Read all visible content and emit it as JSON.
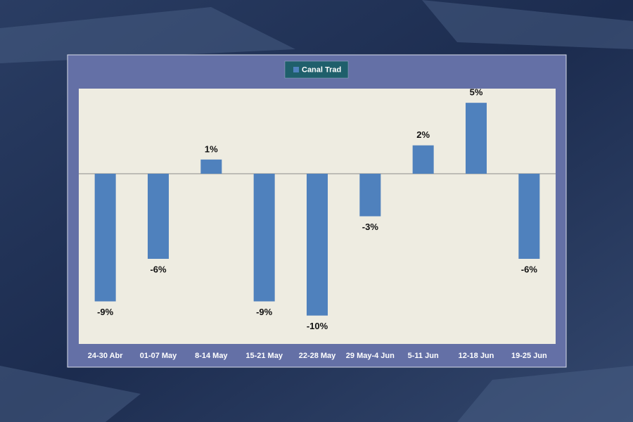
{
  "chart_data": {
    "type": "bar",
    "categories": [
      "24-30 Abr",
      "01-07 May",
      "8-14 May",
      "15-21 May",
      "22-28 May",
      "29 May-4  Jun",
      "5-11 Jun",
      "12-18 Jun",
      "19-25 Jun"
    ],
    "series": [
      {
        "name": "Canal Trad",
        "color": "#4f81bd",
        "values": [
          -9,
          -6,
          1,
          -9,
          -10,
          -3,
          2,
          5,
          -6
        ],
        "value_labels": [
          "-9%",
          "-6%",
          "1%",
          "-9%",
          "-10%",
          "-3%",
          "2%",
          "5%",
          "-6%"
        ]
      }
    ],
    "ylim": [
      -12,
      6
    ],
    "legend": "top"
  }
}
